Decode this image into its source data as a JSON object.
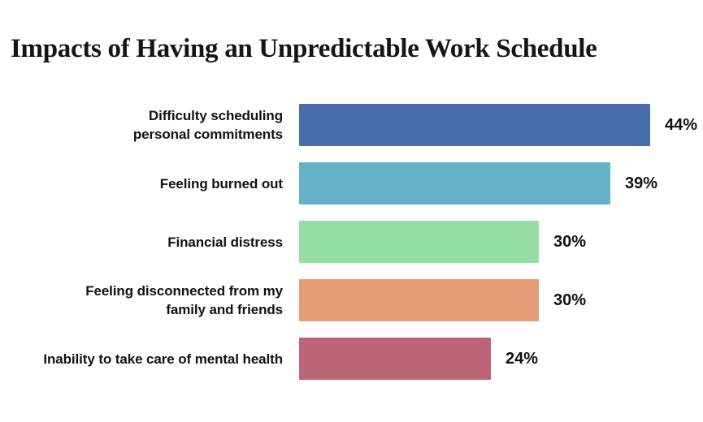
{
  "title": "Impacts of Having an Unpredictable Work Schedule",
  "colors": {
    "background": "#ffffff",
    "title_text": "#151515",
    "label_text": "#111111"
  },
  "chart_data": {
    "type": "bar",
    "orientation": "horizontal",
    "title": "Impacts of Having an Unpredictable Work Schedule",
    "xlabel": "",
    "ylabel": "",
    "unit": "%",
    "xlim": [
      0,
      44
    ],
    "grid": false,
    "legend": false,
    "categories": [
      "Difficulty scheduling personal commitments",
      "Feeling burned out",
      "Financial distress",
      "Feeling disconnected from my family and friends",
      "Inability to take care of mental health"
    ],
    "values": [
      44,
      39,
      30,
      30,
      24
    ],
    "value_labels": [
      "44%",
      "39%",
      "30%",
      "30%",
      "24%"
    ],
    "bar_colors": [
      "#4a6dac",
      "#64b1c8",
      "#95dda2",
      "#e89b77",
      "#bd6478"
    ],
    "rows": [
      {
        "label_lines": [
          "Difficulty scheduling",
          "personal commitments"
        ],
        "value": 44,
        "value_label": "44%",
        "color": "#4a6dac"
      },
      {
        "label_lines": [
          "Feeling burned out"
        ],
        "value": 39,
        "value_label": "39%",
        "color": "#64b1c8"
      },
      {
        "label_lines": [
          "Financial distress"
        ],
        "value": 30,
        "value_label": "30%",
        "color": "#95dda2"
      },
      {
        "label_lines": [
          "Feeling disconnected from my",
          "family and friends"
        ],
        "value": 30,
        "value_label": "30%",
        "color": "#e89b77"
      },
      {
        "label_lines": [
          "Inability to take care of mental health"
        ],
        "value": 24,
        "value_label": "24%",
        "color": "#bd6478"
      }
    ]
  }
}
